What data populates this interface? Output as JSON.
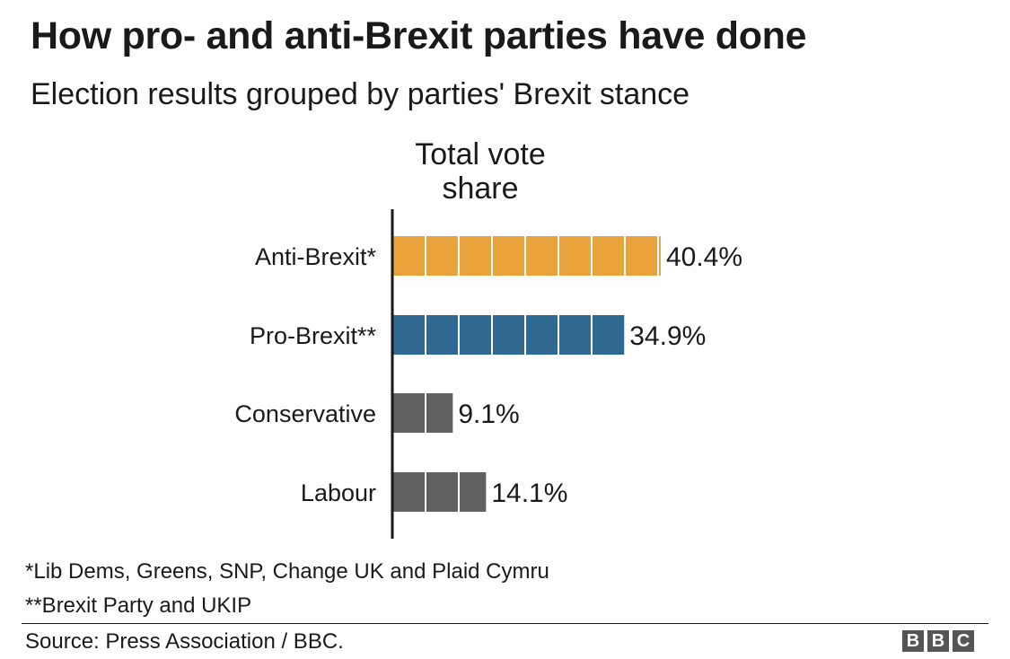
{
  "header": {
    "title": "How pro- and anti-Brexit parties have done",
    "subtitle": "Election results grouped by parties' Brexit stance"
  },
  "chart_data": {
    "type": "bar",
    "orientation": "horizontal",
    "column_header_line1": "Total vote",
    "column_header_line2": "share",
    "categories": [
      "Anti-Brexit*",
      "Pro-Brexit**",
      "Conservative",
      "Labour"
    ],
    "values": [
      40.4,
      34.9,
      9.1,
      14.1
    ],
    "value_labels": [
      "40.4%",
      "34.9%",
      "9.1%",
      "14.1%"
    ],
    "colors": [
      "#E9A33A",
      "#2F6891",
      "#606060",
      "#606060"
    ],
    "unit": "%",
    "style": "segmented bars, one block per 5 percentage points",
    "grid": false,
    "legend": "none"
  },
  "footnotes": [
    "*Lib Dems, Greens, SNP, Change UK and Plaid Cymru",
    "**Brexit Party and UKIP"
  ],
  "source": "Source: Press Association / BBC.",
  "logo": [
    "B",
    "B",
    "C"
  ]
}
